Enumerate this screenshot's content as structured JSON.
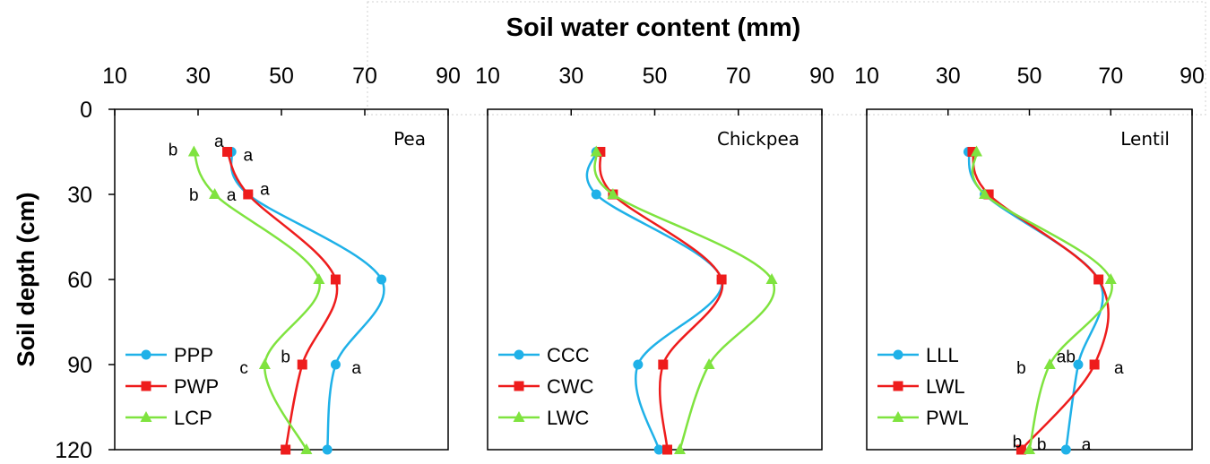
{
  "figure": {
    "title": "Soil water content (mm)",
    "ylabel": "Soil depth (cm)"
  },
  "colors": {
    "blue": "#1FB1E8",
    "red": "#EE1C1C",
    "green": "#7FE33F"
  },
  "chart_data": [
    {
      "type": "line",
      "panel_label": "Pea",
      "xlim": [
        10,
        90
      ],
      "ylim": [
        0,
        120
      ],
      "y_inverted": true,
      "xticks": [
        "10",
        "30",
        "50",
        "70",
        "90"
      ],
      "yticks": [
        "0",
        "30",
        "60",
        "90",
        "120"
      ],
      "depths": [
        15,
        30,
        60,
        90,
        120
      ],
      "legend_position": "bottom-left",
      "series": [
        {
          "name": "PPP",
          "color": "blue",
          "marker": "circle",
          "values": [
            38,
            42,
            74,
            63,
            61
          ]
        },
        {
          "name": "PWP",
          "color": "red",
          "marker": "square",
          "values": [
            37,
            42,
            63,
            55,
            51
          ]
        },
        {
          "name": "LCP",
          "color": "green",
          "marker": "triangle",
          "values": [
            29,
            34,
            59,
            46,
            56
          ]
        }
      ],
      "annotations": [
        {
          "text": "b",
          "x": 24,
          "y": 14
        },
        {
          "text": "a",
          "x": 35,
          "y": 11
        },
        {
          "text": "a",
          "x": 42,
          "y": 16
        },
        {
          "text": "b",
          "x": 29,
          "y": 30
        },
        {
          "text": "a",
          "x": 38,
          "y": 30
        },
        {
          "text": "a",
          "x": 46,
          "y": 28
        },
        {
          "text": "b",
          "x": 51,
          "y": 87
        },
        {
          "text": "c",
          "x": 41,
          "y": 91
        },
        {
          "text": "a",
          "x": 68,
          "y": 91
        }
      ]
    },
    {
      "type": "line",
      "panel_label": "Chickpea",
      "xlim": [
        10,
        90
      ],
      "ylim": [
        0,
        120
      ],
      "y_inverted": true,
      "xticks": [
        "10",
        "30",
        "50",
        "70",
        "90"
      ],
      "yticks": [],
      "depths": [
        15,
        30,
        60,
        90,
        120
      ],
      "legend_position": "bottom-left",
      "series": [
        {
          "name": "CCC",
          "color": "blue",
          "marker": "circle",
          "values": [
            36,
            36,
            66,
            46,
            51
          ]
        },
        {
          "name": "CWC",
          "color": "red",
          "marker": "square",
          "values": [
            37,
            40,
            66,
            52,
            53
          ]
        },
        {
          "name": "LWC",
          "color": "green",
          "marker": "triangle",
          "values": [
            36,
            40,
            78,
            63,
            56
          ]
        }
      ],
      "annotations": []
    },
    {
      "type": "line",
      "panel_label": "Lentil",
      "xlim": [
        10,
        90
      ],
      "ylim": [
        0,
        120
      ],
      "y_inverted": true,
      "xticks": [
        "10",
        "30",
        "50",
        "70",
        "90"
      ],
      "yticks": [],
      "depths": [
        15,
        30,
        60,
        90,
        120
      ],
      "legend_position": "bottom-left",
      "series": [
        {
          "name": "LLL",
          "color": "blue",
          "marker": "circle",
          "values": [
            35,
            39,
            67,
            62,
            59
          ]
        },
        {
          "name": "LWL",
          "color": "red",
          "marker": "square",
          "values": [
            36,
            40,
            67,
            66,
            48
          ]
        },
        {
          "name": "PWL",
          "color": "green",
          "marker": "triangle",
          "values": [
            37,
            39,
            70,
            55,
            50
          ]
        }
      ],
      "annotations": [
        {
          "text": "ab",
          "x": 59,
          "y": 87
        },
        {
          "text": "b",
          "x": 48,
          "y": 91
        },
        {
          "text": "a",
          "x": 72,
          "y": 91
        },
        {
          "text": "b",
          "x": 47,
          "y": 117
        },
        {
          "text": "b",
          "x": 53,
          "y": 118
        },
        {
          "text": "a",
          "x": 64,
          "y": 118
        }
      ]
    }
  ]
}
